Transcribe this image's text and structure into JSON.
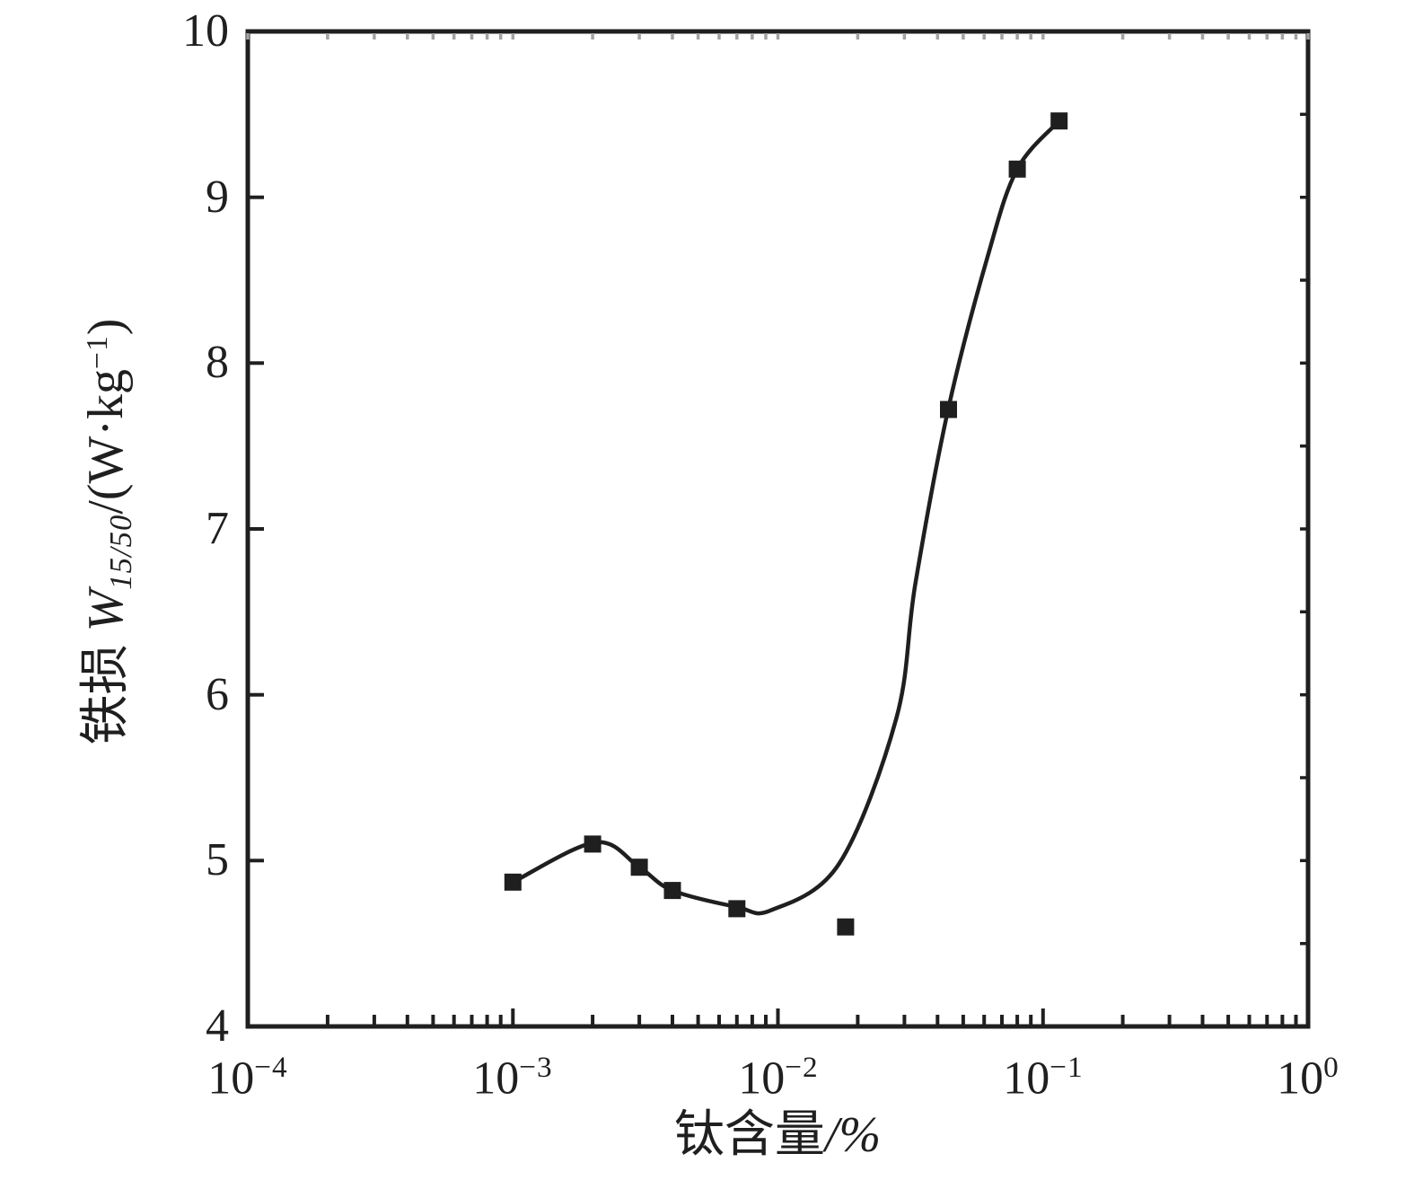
{
  "figure": {
    "background": "#ffffff",
    "ink": "#1f1f1f",
    "top_minor_tick_color": "#a3a3a3"
  },
  "chart_data": {
    "type": "scatter",
    "title": "",
    "xlabel_text": "钛含量",
    "xlabel_unit": "/%",
    "ylabel_prefix": "铁损 ",
    "ylabel_symbol": "W",
    "ylabel_subscript": "15/50",
    "ylabel_mid": "/(W·kg",
    "ylabel_sup": "−1",
    "ylabel_suffix": ")",
    "x_scale": "log",
    "y_scale": "linear",
    "x_range": [
      0.0001,
      1
    ],
    "y_range": [
      4,
      10
    ],
    "x_tick_base": "10",
    "x_tick_exponents": [
      -4,
      -3,
      -2,
      -1,
      0
    ],
    "y_ticks": [
      4,
      5,
      6,
      7,
      8,
      9,
      10
    ],
    "grid": "off",
    "legend": "none",
    "points": [
      [
        0.001,
        4.87
      ],
      [
        0.002,
        5.1
      ],
      [
        0.003,
        4.96
      ],
      [
        0.004,
        4.82
      ],
      [
        0.007,
        4.71
      ],
      [
        0.018,
        4.6
      ],
      [
        0.044,
        7.72
      ],
      [
        0.08,
        9.17
      ],
      [
        0.115,
        9.46
      ]
    ],
    "curve": [
      [
        0.001,
        4.87
      ],
      [
        0.00205,
        5.11
      ],
      [
        0.003,
        4.96
      ],
      [
        0.004,
        4.82
      ],
      [
        0.007,
        4.72
      ],
      [
        0.0094,
        4.7
      ],
      [
        0.017,
        4.98
      ],
      [
        0.028,
        5.86
      ],
      [
        0.033,
        6.67
      ],
      [
        0.044,
        7.73
      ],
      [
        0.062,
        8.65
      ],
      [
        0.08,
        9.17
      ],
      [
        0.115,
        9.46
      ]
    ]
  }
}
